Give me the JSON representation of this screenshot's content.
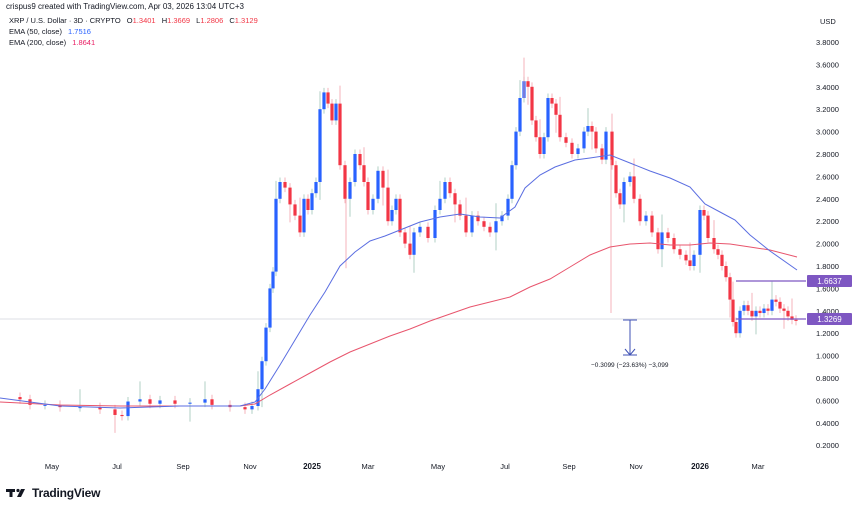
{
  "header": {
    "credit": "crispus9 created with TradingView.com, Apr 03, 2026 13:04 UTC+3",
    "symbol": "XRP / U.S. Dollar · 3D · CRYPTO",
    "ohlc": {
      "o_label": "O",
      "o": "1.3401",
      "h_label": "H",
      "h": "1.3669",
      "l_label": "L",
      "l": "1.2806",
      "c_label": "C",
      "c": "1.3129"
    },
    "ema50": {
      "label": "EMA (50, close)",
      "value": "1.7516"
    },
    "ema200": {
      "label": "EMA (200, close)",
      "value": "1.8641"
    }
  },
  "price_axis": {
    "currency": "USD",
    "ticks": [
      "3.8000",
      "3.6000",
      "3.4000",
      "3.2000",
      "3.0000",
      "2.8000",
      "2.6000",
      "2.4000",
      "2.2000",
      "2.0000",
      "1.8000",
      "1.6000",
      "1.4000",
      "1.2000",
      "1.0000",
      "0.8000",
      "0.6000",
      "0.4000",
      "0.2000"
    ]
  },
  "time_axis": {
    "ticks": [
      {
        "label": "May",
        "bold": false
      },
      {
        "label": "Jul",
        "bold": false
      },
      {
        "label": "Sep",
        "bold": false
      },
      {
        "label": "Nov",
        "bold": false
      },
      {
        "label": "2025",
        "bold": true
      },
      {
        "label": "Mar",
        "bold": false
      },
      {
        "label": "May",
        "bold": false
      },
      {
        "label": "Jul",
        "bold": false
      },
      {
        "label": "Sep",
        "bold": false
      },
      {
        "label": "Nov",
        "bold": false
      },
      {
        "label": "2026",
        "bold": true
      },
      {
        "label": "Mar",
        "bold": false
      }
    ]
  },
  "price_labels": {
    "resistance": "1.6637",
    "support": "1.3269"
  },
  "measure": {
    "text": "−0.3099 (−23.63%) −3,099"
  },
  "brand": {
    "name": "TradingView"
  },
  "colors": {
    "up": "#2962ff",
    "down": "#f23645",
    "ema50": "#5b6ee1",
    "ema200": "#e8556d",
    "level": "#7e57c2",
    "label_bg": "#7e57c2"
  },
  "chart_data": {
    "type": "candlestick",
    "title": "XRP / U.S. Dollar · 3D · CRYPTO",
    "xlabel": "",
    "ylabel": "USD",
    "ylim": [
      0.2,
      3.8
    ],
    "grid": false,
    "legend_position": "top-left",
    "series": [
      {
        "name": "XRP/USD price (approx. closes)",
        "x": [
          "2024-04",
          "2024-05",
          "2024-06",
          "2024-07",
          "2024-08",
          "2024-09",
          "2024-10",
          "2024-11-mid",
          "2024-12",
          "2025-01",
          "2025-02",
          "2025-03",
          "2025-04",
          "2025-05",
          "2025-06",
          "2025-07",
          "2025-08",
          "2025-09",
          "2025-10",
          "2025-11",
          "2025-12",
          "2026-01",
          "2026-02",
          "2026-03",
          "2026-04"
        ],
        "values": [
          0.62,
          0.52,
          0.48,
          0.44,
          0.58,
          0.58,
          0.54,
          1.15,
          2.4,
          3.1,
          2.55,
          2.3,
          2.1,
          2.3,
          2.18,
          3.45,
          3.0,
          2.9,
          2.5,
          2.2,
          1.9,
          2.15,
          1.45,
          1.4,
          1.31
        ]
      },
      {
        "name": "EMA (50, close)",
        "last": 1.7516
      },
      {
        "name": "EMA (200, close)",
        "last": 1.8641
      }
    ],
    "annotations": [
      {
        "type": "horizontal_level",
        "value": 1.6637
      },
      {
        "type": "horizontal_level",
        "value": 1.3269
      },
      {
        "type": "measure",
        "text": "−0.3099 (−23.63%) −3,099"
      },
      {
        "type": "ohlc",
        "open": 1.3401,
        "high": 1.3669,
        "low": 1.2806,
        "close": 1.3129
      }
    ],
    "peaks": {
      "2025-01_high": 3.4,
      "2025-07_high": 3.66
    }
  }
}
